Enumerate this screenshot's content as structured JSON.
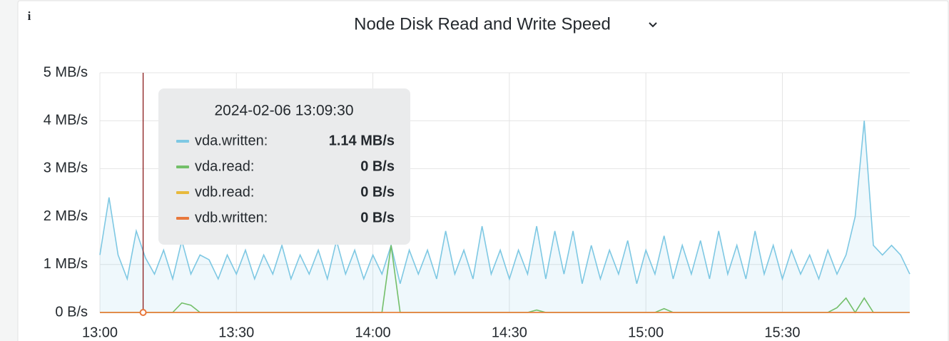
{
  "chart_data": {
    "type": "line",
    "title": "Node Disk Read and Write Speed",
    "x": [
      "13:00",
      "13:02",
      "13:04",
      "13:06",
      "13:08",
      "13:10",
      "13:12",
      "13:14",
      "13:16",
      "13:18",
      "13:20",
      "13:22",
      "13:24",
      "13:26",
      "13:28",
      "13:30",
      "13:32",
      "13:34",
      "13:36",
      "13:38",
      "13:40",
      "13:42",
      "13:44",
      "13:46",
      "13:48",
      "13:50",
      "13:52",
      "13:54",
      "13:56",
      "13:58",
      "14:00",
      "14:02",
      "14:04",
      "14:06",
      "14:08",
      "14:10",
      "14:12",
      "14:14",
      "14:16",
      "14:18",
      "14:20",
      "14:22",
      "14:24",
      "14:26",
      "14:28",
      "14:30",
      "14:32",
      "14:34",
      "14:36",
      "14:38",
      "14:40",
      "14:42",
      "14:44",
      "14:46",
      "14:48",
      "14:50",
      "14:52",
      "14:54",
      "14:56",
      "14:58",
      "15:00",
      "15:02",
      "15:04",
      "15:06",
      "15:08",
      "15:10",
      "15:12",
      "15:14",
      "15:16",
      "15:18",
      "15:20",
      "15:22",
      "15:24",
      "15:26",
      "15:28",
      "15:30",
      "15:32",
      "15:34",
      "15:36",
      "15:38",
      "15:40",
      "15:42",
      "15:44",
      "15:46",
      "15:48",
      "15:50",
      "15:52",
      "15:54",
      "15:56",
      "15:58"
    ],
    "series": [
      {
        "color": "#7ec8e3",
        "fill": true,
        "values": [
          1.2,
          2.4,
          1.2,
          0.7,
          1.7,
          1.14,
          0.8,
          1.3,
          0.7,
          1.5,
          0.8,
          1.2,
          1.1,
          0.7,
          1.2,
          0.8,
          1.3,
          0.7,
          1.2,
          0.8,
          1.4,
          0.7,
          1.2,
          0.8,
          1.3,
          0.7,
          1.5,
          0.8,
          1.3,
          0.7,
          1.2,
          0.8,
          1.4,
          0.6,
          1.3,
          0.8,
          1.3,
          0.7,
          1.7,
          0.8,
          1.3,
          0.7,
          1.8,
          0.8,
          1.3,
          0.7,
          1.3,
          0.8,
          1.8,
          0.7,
          1.7,
          0.8,
          1.7,
          0.6,
          1.4,
          0.7,
          1.3,
          0.8,
          1.5,
          0.6,
          1.3,
          0.8,
          1.6,
          0.7,
          1.4,
          0.8,
          1.5,
          0.7,
          1.7,
          0.8,
          1.4,
          0.7,
          1.7,
          0.8,
          1.4,
          0.7,
          1.3,
          0.8,
          1.2,
          0.7,
          1.3,
          0.8,
          1.2,
          2.0,
          4.0,
          1.4,
          1.2,
          1.4,
          1.2,
          0.8
        ]
      },
      {
        "color": "#73bf69",
        "fill": false,
        "values": [
          0,
          0,
          0,
          0,
          0,
          0,
          0,
          0,
          0,
          0.2,
          0.15,
          0,
          0,
          0,
          0,
          0,
          0,
          0,
          0,
          0,
          0,
          0,
          0,
          0,
          0,
          0,
          0,
          0,
          0,
          0,
          0,
          0,
          1.4,
          0,
          0,
          0,
          0,
          0,
          0,
          0,
          0,
          0,
          0,
          0,
          0,
          0,
          0,
          0,
          0.05,
          0,
          0,
          0,
          0,
          0,
          0,
          0,
          0,
          0,
          0,
          0,
          0,
          0,
          0.08,
          0,
          0,
          0,
          0,
          0,
          0,
          0,
          0,
          0,
          0,
          0,
          0,
          0,
          0,
          0,
          0,
          0,
          0,
          0.1,
          0.3,
          0,
          0.3,
          0,
          0,
          0,
          0,
          0
        ]
      },
      {
        "color": "#e8b93c",
        "fill": false,
        "values": [
          0,
          0,
          0,
          0,
          0,
          0,
          0,
          0,
          0,
          0,
          0,
          0,
          0,
          0,
          0,
          0,
          0,
          0,
          0,
          0,
          0,
          0,
          0,
          0,
          0,
          0,
          0,
          0,
          0,
          0,
          0,
          0,
          0,
          0,
          0,
          0,
          0,
          0,
          0,
          0,
          0,
          0,
          0,
          0,
          0,
          0,
          0,
          0,
          0,
          0,
          0,
          0,
          0,
          0,
          0,
          0,
          0,
          0,
          0,
          0,
          0,
          0,
          0,
          0,
          0,
          0,
          0,
          0,
          0,
          0,
          0,
          0,
          0,
          0,
          0,
          0,
          0,
          0,
          0,
          0,
          0,
          0,
          0,
          0,
          0,
          0,
          0,
          0,
          0,
          0
        ]
      },
      {
        "color": "#e8783c",
        "fill": false,
        "values": [
          0,
          0,
          0,
          0,
          0,
          0,
          0,
          0,
          0,
          0,
          0,
          0,
          0,
          0,
          0,
          0,
          0,
          0,
          0,
          0,
          0,
          0,
          0,
          0,
          0,
          0,
          0,
          0,
          0,
          0,
          0,
          0,
          0,
          0,
          0,
          0,
          0,
          0,
          0,
          0,
          0,
          0,
          0,
          0,
          0,
          0,
          0,
          0,
          0,
          0,
          0,
          0,
          0,
          0,
          0,
          0,
          0,
          0,
          0,
          0,
          0,
          0,
          0,
          0,
          0,
          0,
          0,
          0,
          0,
          0,
          0,
          0,
          0,
          0,
          0,
          0,
          0,
          0,
          0,
          0,
          0,
          0,
          0,
          0,
          0,
          0,
          0,
          0,
          0,
          0
        ]
      }
    ],
    "xlim": [
      "13:00",
      "15:58"
    ],
    "xticks": [
      "13:00",
      "13:30",
      "14:00",
      "14:30",
      "15:00",
      "15:30"
    ],
    "ylim": [
      0,
      5
    ],
    "yticks": [
      {
        "value": 0,
        "label": "0 B/s"
      },
      {
        "value": 1,
        "label": "1 MB/s"
      },
      {
        "value": 2,
        "label": "2 MB/s"
      },
      {
        "value": 3,
        "label": "3 MB/s"
      },
      {
        "value": 4,
        "label": "4 MB/s"
      },
      {
        "value": 5,
        "label": "5 MB/s"
      }
    ],
    "grid": true,
    "tooltip": {
      "time": "2024-02-06 13:09:30",
      "items": [
        {
          "label": "vda.written:",
          "value": {
            "value": 1.14,
            "label": "1.14 MB/s"
          }
        },
        {
          "label": "vda.read:",
          "value": {
            "value": 0,
            "label": "0 B/s"
          }
        },
        {
          "label": "vdb.read:",
          "value": {
            "value": 0,
            "label": "0 B/s"
          }
        },
        {
          "label": "vdb.written:",
          "value": {
            "value": 0,
            "label": "0 B/s"
          }
        }
      ]
    },
    "info_icon": "i"
  }
}
